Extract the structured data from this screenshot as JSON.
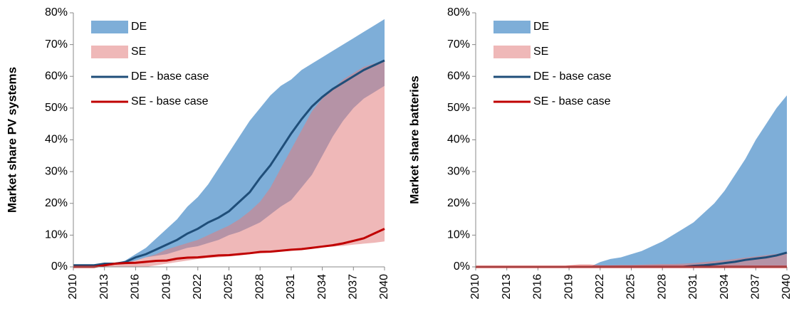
{
  "chart_data": [
    {
      "type": "band-line",
      "ylabel": "Market share PV systems",
      "x": [
        2010,
        2011,
        2012,
        2013,
        2014,
        2015,
        2016,
        2017,
        2018,
        2019,
        2020,
        2021,
        2022,
        2023,
        2024,
        2025,
        2026,
        2027,
        2028,
        2029,
        2030,
        2031,
        2032,
        2033,
        2034,
        2035,
        2036,
        2037,
        2038,
        2039,
        2040
      ],
      "xlim": [
        2010,
        2040
      ],
      "xticks": [
        2010,
        2013,
        2016,
        2019,
        2022,
        2025,
        2028,
        2031,
        2034,
        2037,
        2040
      ],
      "ylim": [
        0,
        80
      ],
      "yticks": [
        {
          "value": 0,
          "label": "0%"
        },
        {
          "value": 10,
          "label": "10%"
        },
        {
          "value": 20,
          "label": "20%"
        },
        {
          "value": 30,
          "label": "30%"
        },
        {
          "value": 40,
          "label": "40%"
        },
        {
          "value": 50,
          "label": "50%"
        },
        {
          "value": 60,
          "label": "60%"
        },
        {
          "value": 70,
          "label": "70%"
        },
        {
          "value": 80,
          "label": "80%"
        }
      ],
      "legend": "upper left",
      "series": [
        {
          "name": "DE",
          "kind": "band",
          "color": "#7eaed8",
          "upper": [
            0.5,
            0.5,
            0.5,
            1,
            1,
            2,
            4,
            6,
            9,
            12,
            15,
            19,
            22,
            26,
            31,
            36,
            41,
            46,
            50,
            54,
            57,
            59,
            62,
            64,
            66,
            68,
            70,
            72,
            74,
            76,
            78
          ],
          "lower": [
            0.5,
            0.5,
            0.5,
            1,
            1,
            1,
            2,
            3,
            3.5,
            4,
            5,
            6,
            6.5,
            7.5,
            8.5,
            10,
            11,
            12.5,
            14,
            16.5,
            19,
            21,
            25,
            29,
            35,
            41,
            46,
            50,
            53,
            55,
            57
          ]
        },
        {
          "name": "SE",
          "kind": "band",
          "color": "#e17d7d",
          "upper": [
            0.5,
            0.5,
            0.5,
            0.5,
            1,
            1.5,
            2,
            3,
            4,
            5.5,
            6.5,
            7.5,
            8.5,
            10,
            11.5,
            13,
            15,
            17.5,
            20.5,
            25,
            31,
            37,
            43,
            49,
            53,
            56,
            59,
            61,
            63,
            64,
            65
          ],
          "lower": [
            0,
            0,
            0,
            0,
            0,
            0,
            0,
            0,
            0.5,
            1,
            1.5,
            2,
            2.5,
            2.8,
            3,
            3.3,
            3.6,
            4,
            4.3,
            4.6,
            5,
            5.3,
            5.6,
            6,
            6.2,
            6.4,
            6.6,
            7,
            7.3,
            7.6,
            8
          ]
        },
        {
          "name": "DE - base case",
          "kind": "line",
          "color": "#1f4e79",
          "values": [
            0.5,
            0.5,
            0.5,
            1,
            1,
            1.5,
            3,
            4,
            5.5,
            7,
            8.5,
            10.5,
            12,
            14,
            15.5,
            17.5,
            20.5,
            23.5,
            28,
            32,
            37,
            42,
            46.5,
            50.5,
            53.5,
            56,
            58,
            60,
            62,
            63.5,
            65
          ]
        },
        {
          "name": "SE - base case",
          "kind": "line",
          "color": "#c00000",
          "values": [
            0,
            0,
            0,
            0.5,
            1,
            1.2,
            1.3,
            1.6,
            1.9,
            2,
            2.6,
            2.9,
            3,
            3.3,
            3.6,
            3.7,
            4,
            4.3,
            4.7,
            4.8,
            5.1,
            5.4,
            5.6,
            6,
            6.4,
            6.8,
            7.4,
            8.2,
            9,
            10.5,
            12
          ]
        }
      ]
    },
    {
      "type": "band-line",
      "ylabel": "Market share batteries",
      "x": [
        2010,
        2011,
        2012,
        2013,
        2014,
        2015,
        2016,
        2017,
        2018,
        2019,
        2020,
        2021,
        2022,
        2023,
        2024,
        2025,
        2026,
        2027,
        2028,
        2029,
        2030,
        2031,
        2032,
        2033,
        2034,
        2035,
        2036,
        2037,
        2038,
        2039,
        2040
      ],
      "xlim": [
        2010,
        2040
      ],
      "xticks": [
        2010,
        2013,
        2016,
        2019,
        2022,
        2025,
        2028,
        2031,
        2034,
        2037,
        2040
      ],
      "ylim": [
        0,
        80
      ],
      "yticks": [
        {
          "value": 0,
          "label": "0%"
        },
        {
          "value": 10,
          "label": "10%"
        },
        {
          "value": 20,
          "label": "20%"
        },
        {
          "value": 30,
          "label": "30%"
        },
        {
          "value": 40,
          "label": "40%"
        },
        {
          "value": 50,
          "label": "50%"
        },
        {
          "value": 60,
          "label": "60%"
        },
        {
          "value": 70,
          "label": "70%"
        },
        {
          "value": 80,
          "label": "80%"
        }
      ],
      "legend": "upper left",
      "series": [
        {
          "name": "DE",
          "kind": "band",
          "color": "#7eaed8",
          "upper": [
            0,
            0,
            0,
            0,
            0,
            0,
            0,
            0,
            0,
            0,
            0,
            0,
            1.5,
            2.5,
            3,
            4,
            5,
            6.5,
            8,
            10,
            12,
            14,
            17,
            20,
            24,
            29,
            34,
            40,
            45,
            50,
            54
          ],
          "lower": [
            0,
            0,
            0,
            0,
            0,
            0,
            0,
            0,
            0,
            0,
            0,
            0,
            0,
            0,
            0,
            0,
            0,
            0,
            0,
            0,
            0,
            0,
            0,
            0,
            0,
            0,
            0,
            0,
            0,
            0,
            0
          ]
        },
        {
          "name": "SE",
          "kind": "band",
          "color": "#e17d7d",
          "upper": [
            0,
            0,
            0,
            0,
            0,
            0,
            0,
            0,
            0,
            0.5,
            0.8,
            0.8,
            0.5,
            0.5,
            0.6,
            0.6,
            0.7,
            0.8,
            0.9,
            0.9,
            1,
            1.2,
            1.5,
            1.8,
            2.1,
            2.5,
            2.9,
            3.3,
            3.7,
            4.1,
            4.5
          ],
          "lower": [
            0,
            0,
            0,
            0,
            0,
            0,
            0,
            0,
            0,
            0,
            0,
            0,
            0,
            0,
            0,
            0,
            0,
            0,
            0,
            0,
            0,
            0,
            0,
            0,
            0,
            0,
            0,
            0,
            0,
            0,
            0
          ]
        },
        {
          "name": "DE - base case",
          "kind": "line",
          "color": "#1f4e79",
          "values": [
            0,
            0,
            0,
            0,
            0,
            0,
            0,
            0,
            0,
            0,
            0,
            0,
            0,
            0,
            0,
            0,
            0,
            0,
            0,
            0,
            0,
            0.3,
            0.5,
            0.8,
            1.2,
            1.6,
            2.2,
            2.6,
            3,
            3.6,
            4.5
          ]
        },
        {
          "name": "SE - base case",
          "kind": "line",
          "color": "#c00000",
          "values": [
            0,
            0,
            0,
            0,
            0,
            0,
            0,
            0,
            0,
            0,
            0,
            0,
            0,
            0,
            0,
            0,
            0,
            0,
            0,
            0,
            0,
            0,
            0,
            0,
            0,
            0,
            0,
            0,
            0,
            0,
            0
          ]
        }
      ]
    }
  ]
}
